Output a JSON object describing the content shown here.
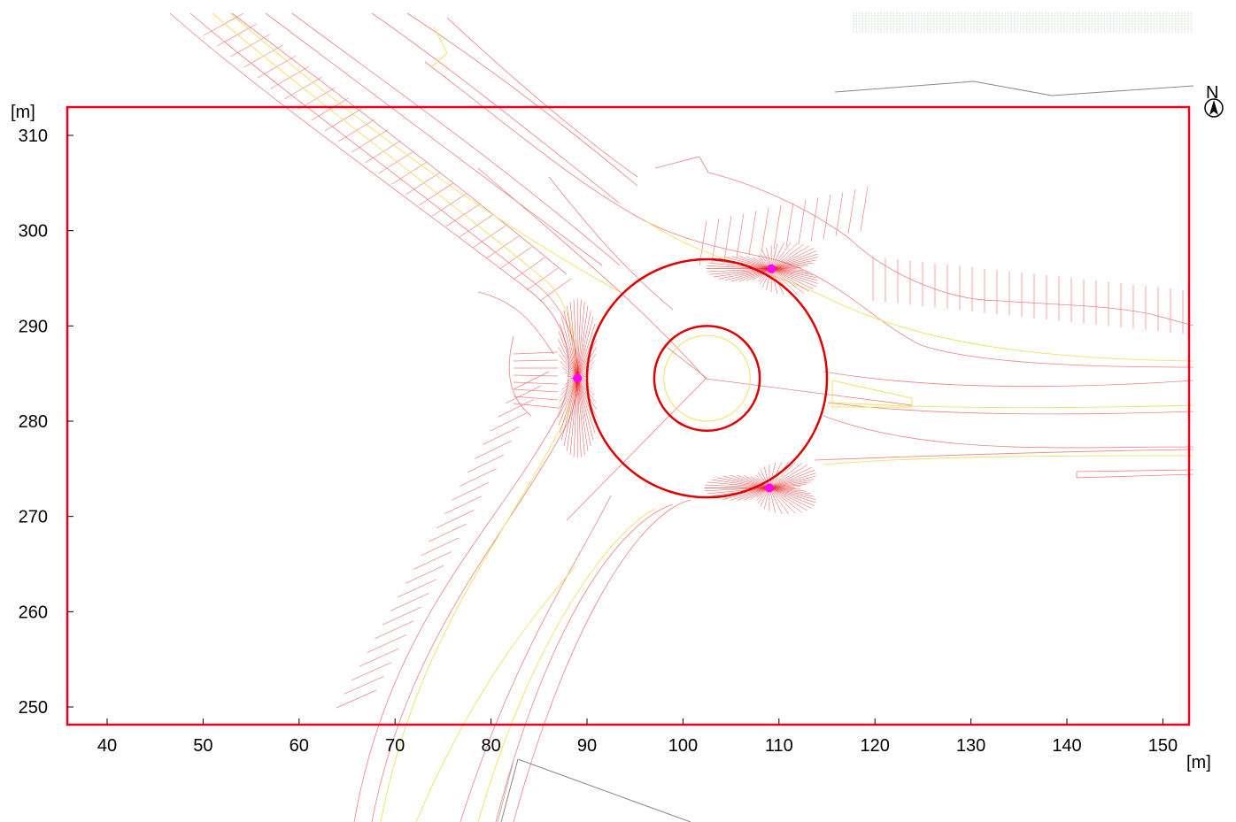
{
  "plot": {
    "x_unit": "[m]",
    "y_unit": "[m]",
    "north_label": "N",
    "x_ticks": [
      "40",
      "50",
      "60",
      "70",
      "80",
      "90",
      "100",
      "110",
      "120",
      "130",
      "140",
      "150"
    ],
    "y_ticks": [
      "250",
      "260",
      "270",
      "280",
      "290",
      "300",
      "310"
    ]
  },
  "chart_data": {
    "type": "scatter",
    "xlim": [
      35.5,
      153
    ],
    "ylim": [
      248,
      313
    ],
    "x_tick_values": [
      40,
      50,
      60,
      70,
      80,
      90,
      100,
      110,
      120,
      130,
      140,
      150
    ],
    "y_tick_values": [
      250,
      260,
      270,
      280,
      290,
      300,
      310
    ],
    "grid": false,
    "roundabout": {
      "center": [
        102.5,
        284.5
      ],
      "outer_radius": 12.5,
      "inner_radius": 5.5,
      "island_line_radius": 4.5
    },
    "sources": [
      {
        "x": 89.0,
        "y": 284.5
      },
      {
        "x": 109.2,
        "y": 296.0
      },
      {
        "x": 109.0,
        "y": 273.0
      }
    ],
    "colors": {
      "frame": "#e8001c",
      "roads": "#f08080",
      "centerline": "#f0e060",
      "source": "#ff00ff",
      "contour": "#e00000"
    }
  }
}
